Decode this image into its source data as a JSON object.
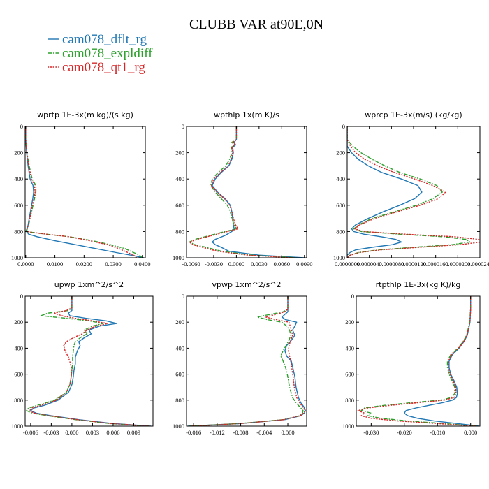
{
  "figure_title": "CLUBB VAR at90E,0N",
  "legend": [
    {
      "name": "cam078_dflt_rg",
      "color": "#1f77b4",
      "dash": "solid"
    },
    {
      "name": "cam078_expldiff",
      "color": "#2ca02c",
      "dash": "dashdot"
    },
    {
      "name": "cam078_qt1_rg",
      "color": "#d62728",
      "dash": "dotted"
    }
  ],
  "chart_data": [
    {
      "type": "line",
      "title": "wprtp  1E-3x(m kg)/(s kg)",
      "xlim": [
        -0.0002,
        0.041
      ],
      "ylim": [
        1000,
        0
      ],
      "xticks": [
        0,
        0.01,
        0.02,
        0.03,
        0.04
      ],
      "xticklabels": [
        "0.0000",
        "0.0100",
        "0.0200",
        "0.0300",
        "0.0400"
      ],
      "yticks": [
        0,
        200,
        400,
        600,
        800,
        1000
      ],
      "yticklabels": [
        "0",
        "200",
        "400",
        "600",
        "800",
        "1000"
      ],
      "y": [
        0,
        100,
        200,
        300,
        400,
        450,
        500,
        550,
        600,
        650,
        700,
        750,
        800,
        820,
        840,
        870,
        900,
        930,
        960,
        980,
        1000
      ],
      "series": [
        {
          "name": "cam078_dflt_rg",
          "x": [
            0,
            0,
            0.0003,
            0.0008,
            0.0015,
            0.0025,
            0.0027,
            0.0024,
            0.002,
            0.0016,
            0.0012,
            0.0008,
            0.0003,
            0.001,
            0.004,
            0.01,
            0.017,
            0.024,
            0.031,
            0.036,
            0.0405
          ]
        },
        {
          "name": "cam078_expldiff",
          "x": [
            0,
            0,
            0.0004,
            0.0012,
            0.0022,
            0.0035,
            0.0035,
            0.003,
            0.0025,
            0.002,
            0.0015,
            0.001,
            0,
            0.007,
            0.015,
            0.023,
            0.029,
            0.034,
            0.037,
            0.039,
            0.04
          ]
        },
        {
          "name": "cam078_qt1_rg",
          "x": [
            0,
            0,
            0.0004,
            0.001,
            0.002,
            0.003,
            0.0032,
            0.0028,
            0.0023,
            0.0018,
            0.0014,
            0.0009,
            0.0002,
            0.007,
            0.015,
            0.022,
            0.028,
            0.032,
            0.035,
            0.037,
            0.038
          ]
        }
      ]
    },
    {
      "type": "line",
      "title": "wpthlp  1x(m K)/s",
      "xlim": [
        -0.0066,
        0.0093
      ],
      "ylim": [
        1000,
        0
      ],
      "xticks": [
        -0.006,
        -0.003,
        0,
        0.003,
        0.006,
        0.009
      ],
      "xticklabels": [
        "-0.0060",
        "-0.0030",
        "0.0000",
        "0.0030",
        "0.0060",
        "0.0090"
      ],
      "yticks": [
        0,
        200,
        400,
        600,
        800,
        1000
      ],
      "yticklabels": [
        "0",
        "200",
        "400",
        "600",
        "800",
        "1000"
      ],
      "y": [
        0,
        100,
        120,
        140,
        160,
        200,
        250,
        300,
        350,
        400,
        450,
        500,
        550,
        600,
        650,
        700,
        750,
        780,
        800,
        830,
        860,
        880,
        900,
        920,
        950,
        980,
        1000
      ],
      "series": [
        {
          "name": "cam078_dflt_rg",
          "x": [
            0,
            0,
            -0.0003,
            -0.0001,
            -0.0005,
            -0.0004,
            -0.0006,
            -0.001,
            -0.002,
            -0.0028,
            -0.0032,
            -0.0025,
            -0.0015,
            -0.0008,
            -0.0006,
            -0.0005,
            -0.0004,
            -0.0003,
            -0.0006,
            -0.0015,
            -0.0028,
            -0.0032,
            -0.0028,
            -0.002,
            -0.001,
            0.003,
            0.009
          ]
        },
        {
          "name": "cam078_expldiff",
          "x": [
            0,
            0,
            -0.0006,
            -0.0003,
            -0.0007,
            -0.0006,
            -0.0009,
            -0.0014,
            -0.0024,
            -0.0032,
            -0.0034,
            -0.0028,
            -0.002,
            -0.0012,
            -0.0008,
            -0.0006,
            -0.0003,
            0,
            -0.0015,
            -0.0035,
            -0.0055,
            -0.0062,
            -0.0055,
            -0.004,
            -0.002,
            0.002,
            0.008
          ]
        },
        {
          "name": "cam078_qt1_rg",
          "x": [
            0,
            0,
            -0.0004,
            -0.0002,
            -0.0006,
            -0.0005,
            -0.0007,
            -0.0011,
            -0.0021,
            -0.003,
            -0.0033,
            -0.0026,
            -0.0016,
            -0.0009,
            -0.0006,
            -0.0004,
            -0.0001,
            0.0002,
            -0.0012,
            -0.0032,
            -0.0052,
            -0.0062,
            -0.0058,
            -0.0045,
            -0.0025,
            0.0015,
            0.0075
          ]
        }
      ]
    },
    {
      "type": "line",
      "title": "wprcp  1E-3x(m/s) (kg/kg)",
      "xlim": [
        0,
        2.4e-05
      ],
      "ylim": [
        1000,
        0
      ],
      "xticks": [
        0,
        4e-06,
        8e-06,
        1.2e-05,
        1.6e-05,
        2e-05,
        2.4e-05
      ],
      "xticklabels": [
        "0.0000000",
        "0.0000040",
        "0.0000080",
        "0.0000120",
        "0.0000160",
        "0.0000200",
        "0.0000240"
      ],
      "yticks": [
        0,
        200,
        400,
        600,
        800,
        1000
      ],
      "yticklabels": [
        "0",
        "200",
        "400",
        "600",
        "800",
        "1000"
      ],
      "y": [
        0,
        100,
        150,
        200,
        250,
        300,
        350,
        400,
        450,
        500,
        550,
        600,
        650,
        700,
        750,
        780,
        800,
        820,
        840,
        860,
        880,
        900,
        920,
        940,
        960,
        980,
        1000
      ],
      "series": [
        {
          "name": "cam078_dflt_rg",
          "x": [
            0,
            0,
            0,
            8e-07,
            2e-06,
            3.8e-06,
            6.2e-06,
            9.8e-06,
            1.28e-05,
            1.35e-05,
            1.22e-05,
            9.5e-06,
            6.5e-06,
            3.8e-06,
            1.5e-06,
            8e-07,
            1.2e-06,
            3e-06,
            6.2e-06,
            8.8e-06,
            9.8e-06,
            8.2e-06,
            4.5e-06,
            1.5e-06,
            5e-07,
            0,
            0
          ]
        },
        {
          "name": "cam078_expldiff",
          "x": [
            0,
            0,
            1e-06,
            2.5e-06,
            4.5e-06,
            6.8e-06,
            9.5e-06,
            1.32e-05,
            1.62e-05,
            1.72e-05,
            1.55e-05,
            1.25e-05,
            8.5e-06,
            4.5e-06,
            2e-06,
            1.2e-06,
            2.5e-06,
            9.5e-06,
            1.75e-05,
            2.15e-05,
            2.22e-05,
            1.9e-05,
            1.2e-05,
            5.5e-06,
            2e-06,
            5e-07,
            0
          ]
        },
        {
          "name": "cam078_qt1_rg",
          "x": [
            0,
            0,
            6e-07,
            1.5e-06,
            3.2e-06,
            5.5e-06,
            8.5e-06,
            1.22e-05,
            1.55e-05,
            1.78e-05,
            1.65e-05,
            1.32e-05,
            9e-06,
            5e-06,
            2.2e-06,
            1.4e-06,
            3e-06,
            1.05e-05,
            1.95e-05,
            2.38e-05,
            2.42e-05,
            2.05e-05,
            1.3e-05,
            6e-06,
            2.2e-06,
            6e-07,
            0
          ]
        }
      ]
    },
    {
      "type": "line",
      "title": "upwp  1xm^2/s^2",
      "xlim": [
        -0.0068,
        0.0118
      ],
      "ylim": [
        1000,
        0
      ],
      "xticks": [
        -0.006,
        -0.003,
        0,
        0.003,
        0.006,
        0.009
      ],
      "xticklabels": [
        "-0.006",
        "-0.003",
        "0.000",
        "0.003",
        "0.006",
        "0.009"
      ],
      "yticks": [
        0,
        200,
        400,
        600,
        800,
        1000
      ],
      "yticklabels": [
        "0",
        "200",
        "400",
        "600",
        "800",
        "1000"
      ],
      "y": [
        0,
        90,
        110,
        130,
        150,
        170,
        190,
        210,
        230,
        260,
        290,
        320,
        350,
        380,
        420,
        470,
        520,
        570,
        620,
        680,
        740,
        800,
        840,
        860,
        880,
        900,
        920,
        950,
        980,
        1000
      ],
      "series": [
        {
          "name": "cam078_dflt_rg",
          "x": [
            0,
            0,
            0,
            -0.0005,
            -0.0003,
            0.002,
            0.005,
            0.0065,
            0.004,
            0.0025,
            0.0028,
            0.0018,
            0.001,
            0.0012,
            0.0008,
            0.0005,
            0.0005,
            0.0003,
            0.0002,
            0,
            -0.0005,
            -0.002,
            -0.004,
            -0.0055,
            -0.006,
            -0.0052,
            -0.003,
            0.001,
            0.006,
            0.0115
          ]
        },
        {
          "name": "cam078_expldiff",
          "x": [
            0,
            0,
            -0.0005,
            -0.0035,
            -0.0045,
            -0.0008,
            0.0025,
            0.0045,
            0.003,
            0.0018,
            0.0022,
            0.0012,
            0.0005,
            0.0003,
            0.0002,
            0.0001,
            0.0001,
            0,
            -0.0001,
            -0.0003,
            -0.0008,
            -0.0025,
            -0.005,
            -0.0063,
            -0.0066,
            -0.0058,
            -0.0035,
            0.0005,
            0.0055,
            0.0112
          ]
        },
        {
          "name": "cam078_qt1_rg",
          "x": [
            0,
            0,
            -0.0008,
            -0.0025,
            -0.0015,
            0.0005,
            0.003,
            0.0052,
            0.0035,
            0.0022,
            0.0015,
            0.0002,
            -0.0008,
            -0.0012,
            -0.001,
            -0.0005,
            -0.0002,
            0,
            -0.0001,
            -0.0003,
            -0.0008,
            -0.0022,
            -0.0045,
            -0.0058,
            -0.0062,
            -0.0055,
            -0.0032,
            0.0008,
            0.0058,
            0.0113
          ]
        }
      ]
    },
    {
      "type": "line",
      "title": "vpwp  1xm^2/s^2",
      "xlim": [
        -0.0172,
        0.0032
      ],
      "ylim": [
        1000,
        0
      ],
      "xticks": [
        -0.016,
        -0.012,
        -0.008,
        -0.004,
        0
      ],
      "xticklabels": [
        "-0.016",
        "-0.012",
        "-0.008",
        "-0.004",
        "0.000"
      ],
      "yticks": [
        0,
        200,
        400,
        600,
        800,
        1000
      ],
      "yticklabels": [
        "0",
        "200",
        "400",
        "600",
        "800",
        "1000"
      ],
      "y": [
        0,
        80,
        100,
        120,
        140,
        160,
        180,
        200,
        230,
        260,
        300,
        340,
        380,
        420,
        460,
        500,
        560,
        620,
        700,
        780,
        820,
        850,
        880,
        900,
        920,
        950,
        980,
        1000
      ],
      "series": [
        {
          "name": "cam078_dflt_rg",
          "x": [
            0,
            0,
            0,
            0,
            -0.0005,
            -0.001,
            -0.0004,
            0.0015,
            0.0012,
            0.0008,
            0.0012,
            0.0006,
            -0.0002,
            -0.0005,
            -0.0002,
            0.0006,
            0.0009,
            0.0012,
            0.0014,
            0.0018,
            0.0022,
            0.0027,
            0.003,
            0.0028,
            0.0022,
            -0.0005,
            -0.008,
            -0.017
          ]
        },
        {
          "name": "cam078_expldiff",
          "x": [
            0,
            0,
            0,
            -0.0008,
            -0.003,
            -0.0052,
            -0.0035,
            -0.001,
            -0.0002,
            0.0003,
            0.0005,
            0.0002,
            -0.0003,
            -0.0008,
            -0.0012,
            -0.0008,
            -0.0003,
            0,
            0.0003,
            0.0008,
            0.0014,
            0.002,
            0.0026,
            0.0025,
            0.002,
            -0.0008,
            -0.0082,
            -0.0168
          ]
        },
        {
          "name": "cam078_qt1_rg",
          "x": [
            0,
            0,
            0,
            -0.0005,
            -0.002,
            -0.0038,
            -0.002,
            0.0002,
            0.0004,
            0.0006,
            0.0008,
            0.0005,
            0.0002,
            0.0001,
            0.0003,
            0.0005,
            0.0007,
            0.0009,
            0.0011,
            0.0015,
            0.002,
            0.0025,
            0.0029,
            0.0027,
            0.0021,
            -0.0006,
            -0.008,
            -0.0166
          ]
        }
      ]
    },
    {
      "type": "line",
      "title": "rtpthlp  1E-3x(kg K)/kg",
      "xlim": [
        -0.0345,
        0.0028
      ],
      "ylim": [
        1000,
        0
      ],
      "xticks": [
        -0.03,
        -0.02,
        -0.01,
        0
      ],
      "xticklabels": [
        "-0.030",
        "-0.020",
        "-0.010",
        "0.000"
      ],
      "yticks": [
        0,
        200,
        400,
        600,
        800,
        1000
      ],
      "yticklabels": [
        "0",
        "200",
        "400",
        "600",
        "800",
        "1000"
      ],
      "y": [
        0,
        100,
        200,
        300,
        350,
        400,
        450,
        500,
        550,
        600,
        650,
        700,
        750,
        780,
        800,
        820,
        840,
        860,
        880,
        900,
        920,
        940,
        960,
        980,
        1000
      ],
      "series": [
        {
          "name": "cam078_dflt_rg",
          "x": [
            0,
            0,
            -0.0002,
            -0.001,
            -0.002,
            -0.0035,
            -0.0055,
            -0.0065,
            -0.0065,
            -0.006,
            -0.005,
            -0.0042,
            -0.004,
            -0.0043,
            -0.0055,
            -0.0085,
            -0.0125,
            -0.0165,
            -0.0195,
            -0.02,
            -0.019,
            -0.016,
            -0.011,
            -0.004,
            0.0025
          ]
        },
        {
          "name": "cam078_expldiff",
          "x": [
            0,
            0,
            -0.0003,
            -0.0012,
            -0.0023,
            -0.0038,
            -0.006,
            -0.007,
            -0.007,
            -0.0065,
            -0.0056,
            -0.0048,
            -0.0048,
            -0.0058,
            -0.009,
            -0.018,
            -0.026,
            -0.032,
            -0.033,
            -0.03,
            -0.031,
            -0.027,
            -0.019,
            -0.008,
            0.002
          ]
        },
        {
          "name": "cam078_qt1_rg",
          "x": [
            0,
            0,
            -0.0002,
            -0.0011,
            -0.0021,
            -0.0036,
            -0.0057,
            -0.0067,
            -0.0067,
            -0.0062,
            -0.0053,
            -0.0045,
            -0.0044,
            -0.005,
            -0.008,
            -0.016,
            -0.024,
            -0.031,
            -0.034,
            -0.032,
            -0.033,
            -0.03,
            -0.022,
            -0.01,
            0.0015
          ]
        }
      ]
    }
  ]
}
